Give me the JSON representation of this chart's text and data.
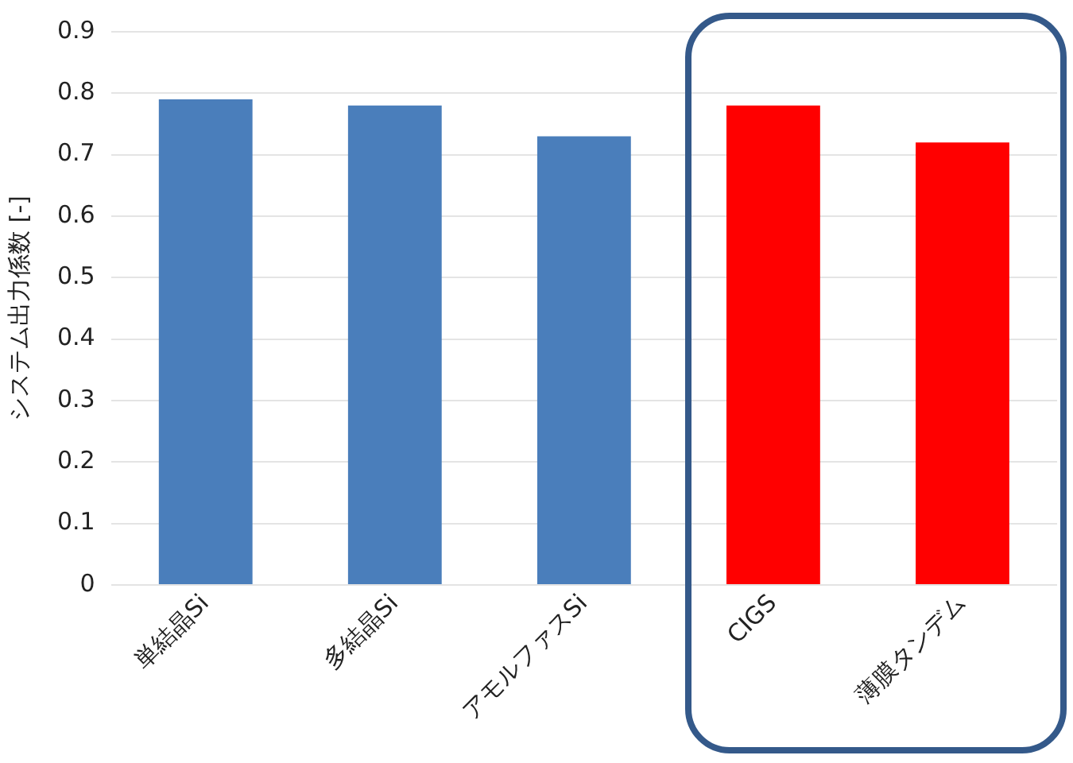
{
  "chart_data": {
    "type": "bar",
    "ylabel": "システム出力係数 [-]",
    "categories": [
      "単結晶Si",
      "多結晶Si",
      "アモルファスSi",
      "CIGS",
      "薄膜タンデム"
    ],
    "values": [
      0.79,
      0.78,
      0.73,
      0.78,
      0.72
    ],
    "colors": [
      "#4a7ebb",
      "#4a7ebb",
      "#4a7ebb",
      "#ff0000",
      "#ff0000"
    ],
    "ylim": [
      0,
      0.9
    ],
    "yticks": [
      0,
      0.1,
      0.2,
      0.3,
      0.4,
      0.5,
      0.6,
      0.7,
      0.8,
      0.9
    ],
    "grid": "y",
    "legend": false
  }
}
